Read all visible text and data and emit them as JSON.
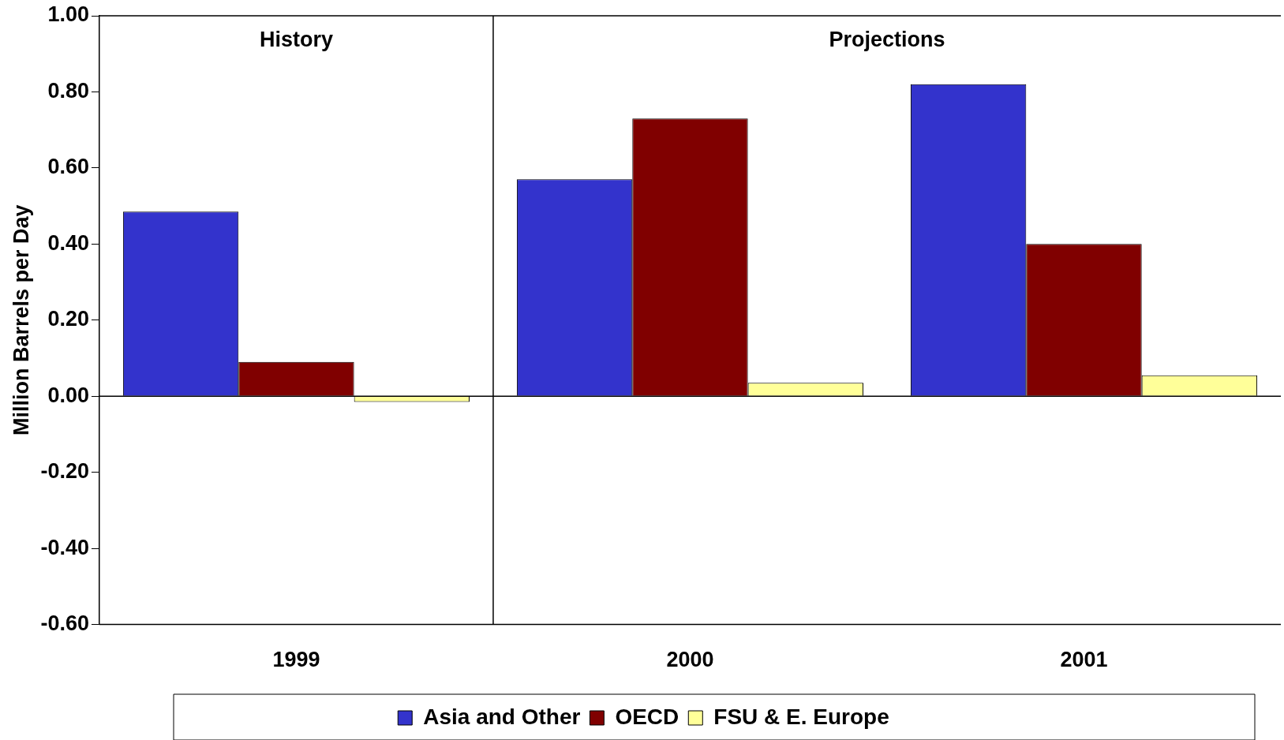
{
  "chart_data": {
    "type": "bar",
    "ylabel": "Million Barrels per Day",
    "categories": [
      "1999",
      "2000",
      "2001"
    ],
    "series": [
      {
        "name": "Asia and Other",
        "color": "#3333cc",
        "values": [
          0.485,
          0.57,
          0.82
        ]
      },
      {
        "name": "OECD",
        "color": "#800000",
        "values": [
          0.09,
          0.73,
          0.4
        ]
      },
      {
        "name": "FSU & E. Europe",
        "color": "#ffff99",
        "values": [
          -0.015,
          0.035,
          0.055
        ]
      }
    ],
    "ylim": [
      -0.6,
      1.0
    ],
    "yticks": [
      {
        "value": -0.6,
        "label": "-0.60"
      },
      {
        "value": -0.4,
        "label": "-0.40"
      },
      {
        "value": -0.2,
        "label": "-0.20"
      },
      {
        "value": 0,
        "label": "0.00"
      },
      {
        "value": 0.2,
        "label": "0.20"
      },
      {
        "value": 0.4,
        "label": "0.40"
      },
      {
        "value": 0.6,
        "label": "0.60"
      },
      {
        "value": 0.8,
        "label": "0.80"
      },
      {
        "value": 1.0,
        "label": "1.00"
      }
    ],
    "annotations": [
      "History",
      "Projections"
    ],
    "legend": "bottom"
  }
}
